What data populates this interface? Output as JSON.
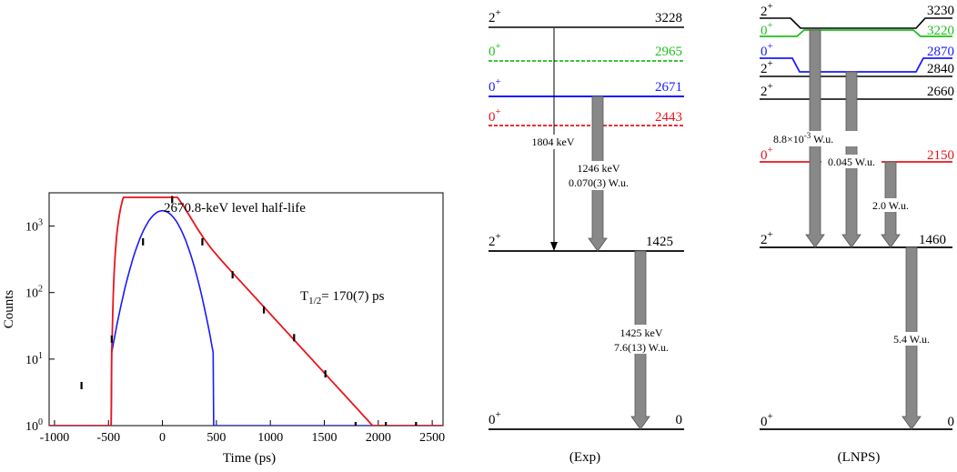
{
  "decay_plot": {
    "title": "2670.8-keV level half-life",
    "xlabel": "Time  (ps)",
    "ylabel": "Counts",
    "halflife": {
      "label": "T",
      "sub": "1/2",
      "value": "= 170(7) ps"
    },
    "colors": {
      "fit": "#e8141b",
      "prompt": "#1a1aff",
      "frame": "#000000"
    },
    "chart_data": {
      "type": "scatter",
      "xlim": [
        -1050,
        2600
      ],
      "ylim_log10": [
        0,
        3.5
      ],
      "x_ticks": [
        -1000,
        -500,
        0,
        500,
        1000,
        1500,
        2000,
        2500
      ],
      "y_ticks": [
        {
          "base": "10",
          "exp": "0"
        },
        {
          "base": "10",
          "exp": "1"
        },
        {
          "base": "10",
          "exp": "2"
        },
        {
          "base": "10",
          "exp": "3"
        }
      ],
      "points": [
        {
          "x": -750,
          "y": 4
        },
        {
          "x": -470,
          "y": 20
        },
        {
          "x": -180,
          "y": 580
        },
        {
          "x": 90,
          "y": 2500
        },
        {
          "x": 370,
          "y": 580
        },
        {
          "x": 650,
          "y": 185
        },
        {
          "x": 940,
          "y": 55
        },
        {
          "x": 1220,
          "y": 21
        },
        {
          "x": 1510,
          "y": 6
        },
        {
          "x": 1790,
          "y": 1
        },
        {
          "x": 2070,
          "y": 1
        },
        {
          "x": 2350,
          "y": 1
        }
      ]
    }
  },
  "exp_scheme": {
    "caption": "(Exp)",
    "levels": [
      {
        "spin": "2",
        "parity": "+",
        "energy": "3228",
        "color": "#000000",
        "dashed": false
      },
      {
        "spin": "0",
        "parity": "+",
        "energy": "2965",
        "color": "#1fbf1f",
        "dashed": true
      },
      {
        "spin": "0",
        "parity": "+",
        "energy": "2671",
        "color": "#1a1aff",
        "dashed": false
      },
      {
        "spin": "0",
        "parity": "+",
        "energy": "2443",
        "color": "#e8141b",
        "dashed": true
      },
      {
        "spin": "2",
        "parity": "+",
        "energy": "1425",
        "color": "#000000",
        "dashed": false
      },
      {
        "spin": "0",
        "parity": "+",
        "energy": "0",
        "color": "#000000",
        "dashed": false
      }
    ],
    "transitions": [
      {
        "lines": [
          "1804 keV"
        ]
      },
      {
        "lines": [
          "1246 keV",
          "0.070(3) W.u."
        ]
      },
      {
        "lines": [
          "1425 keV",
          "7.6(13) W.u."
        ]
      }
    ]
  },
  "lnps_scheme": {
    "caption": "(LNPS)",
    "levels": [
      {
        "spin": "2",
        "parity": "+",
        "energy": "3230",
        "color": "#000000"
      },
      {
        "spin": "0",
        "parity": "+",
        "energy": "3220",
        "color": "#1fbf1f"
      },
      {
        "spin": "0",
        "parity": "+",
        "energy": "2870",
        "color": "#1a1aff"
      },
      {
        "spin": "2",
        "parity": "+",
        "energy": "2840",
        "color": "#000000"
      },
      {
        "spin": "2",
        "parity": "+",
        "energy": "2660",
        "color": "#000000"
      },
      {
        "spin": "0",
        "parity": "+",
        "energy": "2150",
        "color": "#e8141b"
      },
      {
        "spin": "2",
        "parity": "+",
        "energy": "1460",
        "color": "#000000"
      },
      {
        "spin": "0",
        "parity": "+",
        "energy": "0",
        "color": "#000000"
      }
    ],
    "transitions": [
      {
        "label_pre": "8.8×10",
        "label_sup": "-3",
        "label_post": " W.u."
      },
      {
        "label": "0.045 W.u."
      },
      {
        "label": "2.0 W.u."
      },
      {
        "label": "5.4 W.u."
      }
    ]
  }
}
